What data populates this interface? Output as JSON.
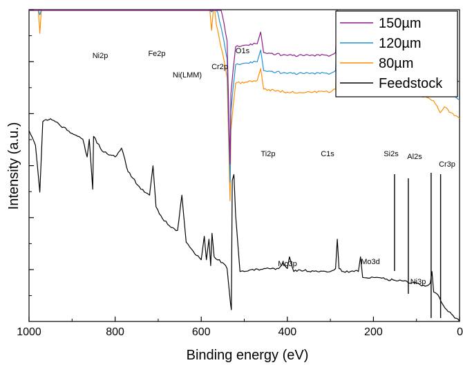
{
  "chart_data": {
    "type": "line",
    "title": "",
    "xlabel": "Binding energy (eV)",
    "ylabel": "Intensity (a.u.)",
    "xlim": [
      1000,
      0
    ],
    "x_reversed": true,
    "y_tick_labels_shown": false,
    "x_ticks": [
      {
        "value": 1000,
        "label": "1000"
      },
      {
        "value": 800,
        "label": "800"
      },
      {
        "value": 600,
        "label": "600"
      },
      {
        "value": 400,
        "label": "400"
      },
      {
        "value": 200,
        "label": "200"
      },
      {
        "value": 0,
        "label": "0"
      }
    ],
    "legend": {
      "placement": "top-right",
      "entries": [
        {
          "label": "150µm",
          "color": "#8b1a89"
        },
        {
          "label": "120µm",
          "color": "#1f8fd6"
        },
        {
          "label": "80µm",
          "color": "#ff8c00"
        },
        {
          "label": "Feedstock",
          "color": "#000000"
        }
      ]
    },
    "series": [
      {
        "name": "150µm",
        "color": "#8b1a89",
        "offset": 0.78,
        "points": [
          [
            1000,
            0.3
          ],
          [
            985,
            0.2
          ],
          [
            975,
            0.45
          ],
          [
            968,
            0.15
          ],
          [
            950,
            0.13
          ],
          [
            900,
            0.12
          ],
          [
            860,
            0.11
          ],
          [
            852,
            0.09
          ],
          [
            830,
            0.11
          ],
          [
            800,
            0.1
          ],
          [
            780,
            0.09
          ],
          [
            760,
            0.1
          ],
          [
            730,
            0.09
          ],
          [
            715,
            0.06
          ],
          [
            705,
            0.09
          ],
          [
            690,
            0.1
          ],
          [
            670,
            0.1
          ],
          [
            650,
            0.09
          ],
          [
            640,
            0.06
          ],
          [
            630,
            0.11
          ],
          [
            615,
            0.14
          ],
          [
            600,
            0.16
          ],
          [
            590,
            0.09
          ],
          [
            585,
            0.2
          ],
          [
            580,
            0.09
          ],
          [
            576,
            0.44
          ],
          [
            572,
            0.3
          ],
          [
            565,
            0.42
          ],
          [
            550,
            0.52
          ],
          [
            540,
            0.6
          ],
          [
            533,
            1.02
          ],
          [
            531,
            0.78
          ],
          [
            526,
            0.7
          ],
          [
            520,
            0.62
          ],
          [
            470,
            0.61
          ],
          [
            462,
            0.57
          ],
          [
            458,
            0.61
          ],
          [
            455,
            0.64
          ],
          [
            400,
            0.65
          ],
          [
            300,
            0.65
          ],
          [
            288,
            0.64
          ],
          [
            284,
            0.48
          ],
          [
            280,
            0.64
          ],
          [
            250,
            0.65
          ],
          [
            200,
            0.65
          ],
          [
            150,
            0.65
          ],
          [
            100,
            0.66
          ],
          [
            80,
            0.665
          ],
          [
            60,
            0.68
          ],
          [
            45,
            0.72
          ],
          [
            35,
            0.7
          ],
          [
            20,
            0.72
          ],
          [
            0,
            0.74
          ]
        ]
      },
      {
        "name": "120µm",
        "color": "#1f8fd6",
        "offset": 0.78,
        "points": [
          [
            1000,
            0.3
          ],
          [
            985,
            0.2
          ],
          [
            975,
            0.45
          ],
          [
            968,
            0.15
          ],
          [
            950,
            0.13
          ],
          [
            900,
            0.12
          ],
          [
            860,
            0.11
          ],
          [
            852,
            0.09
          ],
          [
            830,
            0.11
          ],
          [
            800,
            0.1
          ],
          [
            780,
            0.09
          ],
          [
            760,
            0.1
          ],
          [
            730,
            0.09
          ],
          [
            715,
            0.06
          ],
          [
            705,
            0.09
          ],
          [
            690,
            0.1
          ],
          [
            670,
            0.1
          ],
          [
            650,
            0.09
          ],
          [
            640,
            0.06
          ],
          [
            630,
            0.11
          ],
          [
            615,
            0.14
          ],
          [
            600,
            0.16
          ],
          [
            590,
            0.09
          ],
          [
            585,
            0.2
          ],
          [
            580,
            0.09
          ],
          [
            576,
            0.44
          ],
          [
            572,
            0.3
          ],
          [
            565,
            0.42
          ],
          [
            550,
            0.52
          ],
          [
            540,
            0.6
          ],
          [
            533,
            1.02
          ],
          [
            531,
            0.78
          ],
          [
            526,
            0.7
          ],
          [
            520,
            0.62
          ],
          [
            470,
            0.61
          ],
          [
            462,
            0.57
          ],
          [
            458,
            0.61
          ],
          [
            455,
            0.64
          ],
          [
            400,
            0.65
          ],
          [
            300,
            0.65
          ],
          [
            288,
            0.64
          ],
          [
            284,
            0.48
          ],
          [
            280,
            0.64
          ],
          [
            250,
            0.65
          ],
          [
            200,
            0.65
          ],
          [
            150,
            0.65
          ],
          [
            100,
            0.66
          ],
          [
            80,
            0.665
          ],
          [
            60,
            0.68
          ],
          [
            45,
            0.72
          ],
          [
            35,
            0.7
          ],
          [
            20,
            0.72
          ],
          [
            0,
            0.74
          ]
        ]
      },
      {
        "name": "80µm",
        "color": "#ff8c00",
        "offset": 0.78,
        "points": [
          [
            1000,
            0.3
          ],
          [
            985,
            0.2
          ],
          [
            975,
            0.45
          ],
          [
            968,
            0.15
          ],
          [
            950,
            0.13
          ],
          [
            900,
            0.12
          ],
          [
            860,
            0.11
          ],
          [
            852,
            0.09
          ],
          [
            830,
            0.11
          ],
          [
            800,
            0.1
          ],
          [
            780,
            0.09
          ],
          [
            760,
            0.1
          ],
          [
            730,
            0.09
          ],
          [
            715,
            0.06
          ],
          [
            705,
            0.09
          ],
          [
            690,
            0.1
          ],
          [
            670,
            0.1
          ],
          [
            650,
            0.09
          ],
          [
            640,
            0.06
          ],
          [
            630,
            0.11
          ],
          [
            615,
            0.14
          ],
          [
            600,
            0.16
          ],
          [
            590,
            0.09
          ],
          [
            585,
            0.2
          ],
          [
            580,
            0.09
          ],
          [
            576,
            0.44
          ],
          [
            572,
            0.3
          ],
          [
            565,
            0.42
          ],
          [
            550,
            0.52
          ],
          [
            540,
            0.6
          ],
          [
            533,
            1.02
          ],
          [
            531,
            0.78
          ],
          [
            526,
            0.7
          ],
          [
            520,
            0.62
          ],
          [
            470,
            0.61
          ],
          [
            462,
            0.57
          ],
          [
            458,
            0.61
          ],
          [
            455,
            0.64
          ],
          [
            400,
            0.65
          ],
          [
            300,
            0.65
          ],
          [
            288,
            0.64
          ],
          [
            284,
            0.48
          ],
          [
            280,
            0.64
          ],
          [
            250,
            0.65
          ],
          [
            200,
            0.65
          ],
          [
            150,
            0.65
          ],
          [
            100,
            0.66
          ],
          [
            80,
            0.665
          ],
          [
            60,
            0.68
          ],
          [
            45,
            0.72
          ],
          [
            35,
            0.7
          ],
          [
            20,
            0.72
          ],
          [
            0,
            0.74
          ]
        ]
      },
      {
        "name": "Feedstock",
        "color": "#000000",
        "offset": 0,
        "points": [
          [
            1000,
            0.35
          ],
          [
            985,
            0.4
          ],
          [
            975,
            0.56
          ],
          [
            968,
            0.32
          ],
          [
            950,
            0.31
          ],
          [
            900,
            0.36
          ],
          [
            875,
            0.38
          ],
          [
            865,
            0.44
          ],
          [
            860,
            0.38
          ],
          [
            852,
            0.55
          ],
          [
            850,
            0.37
          ],
          [
            830,
            0.42
          ],
          [
            800,
            0.44
          ],
          [
            785,
            0.41
          ],
          [
            770,
            0.49
          ],
          [
            740,
            0.55
          ],
          [
            720,
            0.57
          ],
          [
            712,
            0.47
          ],
          [
            705,
            0.61
          ],
          [
            690,
            0.65
          ],
          [
            670,
            0.68
          ],
          [
            655,
            0.69
          ],
          [
            645,
            0.57
          ],
          [
            635,
            0.73
          ],
          [
            615,
            0.77
          ],
          [
            600,
            0.79
          ],
          [
            593,
            0.71
          ],
          [
            588,
            0.79
          ],
          [
            582,
            0.72
          ],
          [
            578,
            0.81
          ],
          [
            575,
            0.7
          ],
          [
            570,
            0.78
          ],
          [
            550,
            0.8
          ],
          [
            540,
            0.82
          ],
          [
            532,
            0.94
          ],
          [
            530,
            0.96
          ],
          [
            528,
            0.52
          ],
          [
            524,
            0.5
          ],
          [
            520,
            0.64
          ],
          [
            510,
            0.83
          ],
          [
            500,
            0.83
          ],
          [
            450,
            0.82
          ],
          [
            420,
            0.82
          ],
          [
            410,
            0.8
          ],
          [
            400,
            0.82
          ],
          [
            395,
            0.78
          ],
          [
            385,
            0.83
          ],
          [
            370,
            0.825
          ],
          [
            330,
            0.83
          ],
          [
            300,
            0.83
          ],
          [
            288,
            0.82
          ],
          [
            284,
            0.72
          ],
          [
            280,
            0.82
          ],
          [
            270,
            0.83
          ],
          [
            245,
            0.83
          ],
          [
            235,
            0.83
          ],
          [
            230,
            0.78
          ],
          [
            225,
            0.85
          ],
          [
            200,
            0.85
          ],
          [
            150,
            0.86
          ],
          [
            100,
            0.87
          ],
          [
            80,
            0.88
          ],
          [
            68,
            0.87
          ],
          [
            64,
            0.83
          ],
          [
            60,
            0.9
          ],
          [
            50,
            0.91
          ],
          [
            40,
            0.94
          ],
          [
            30,
            0.96
          ],
          [
            15,
            0.98
          ],
          [
            0,
            1.0
          ]
        ]
      }
    ],
    "annotations": [
      {
        "text": "Ni2p",
        "x": 850
      },
      {
        "text": "Fe2p",
        "x": 710
      },
      {
        "text": "Ni(LMM)",
        "x": 645
      },
      {
        "text": "Cr2p",
        "x": 576
      },
      {
        "text": "O1s",
        "x": 531
      },
      {
        "text": "Ti2p",
        "x": 458
      },
      {
        "text": "C1s",
        "x": 284
      },
      {
        "text": "Si2s",
        "x": 151
      },
      {
        "text": "Al2s",
        "x": 119
      },
      {
        "text": "Cr3p",
        "x": 44
      },
      {
        "text": "Mo3p",
        "x": 395
      },
      {
        "text": "Mo3d",
        "x": 229
      },
      {
        "text": "Ni3p",
        "x": 66
      }
    ]
  }
}
